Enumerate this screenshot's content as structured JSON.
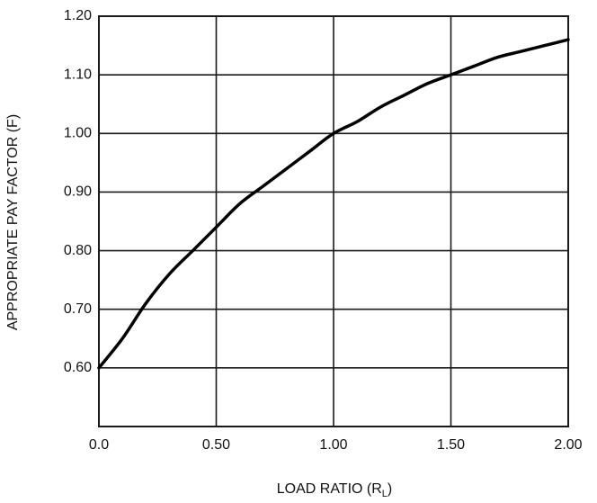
{
  "chart_data": {
    "type": "line",
    "xlabel": "LOAD RATIO (R",
    "xlabel_sub": "L",
    "xlabel_end": ")",
    "ylabel": "APPROPRIATE PAY FACTOR (F)",
    "xlim": [
      0,
      2.0
    ],
    "ylim": [
      0.5,
      1.2
    ],
    "x_ticks": [
      0,
      0.5,
      1.0,
      1.5,
      2.0
    ],
    "x_tick_labels": [
      "0.0",
      "0.50",
      "1.00",
      "1.50",
      "2.00"
    ],
    "y_ticks": [
      0.6,
      0.7,
      0.8,
      0.9,
      1.0,
      1.1,
      1.2
    ],
    "y_tick_labels": [
      "0.60",
      "0.70",
      "0.80",
      "0.90",
      "1.00",
      "1.10",
      "1.20"
    ],
    "grid": true,
    "series": [
      {
        "x": [
          0.0,
          0.1,
          0.2,
          0.3,
          0.4,
          0.5,
          0.6,
          0.7,
          0.8,
          0.9,
          1.0,
          1.1,
          1.2,
          1.3,
          1.4,
          1.5,
          1.6,
          1.7,
          1.8,
          1.9,
          2.0
        ],
        "y": [
          0.6,
          0.65,
          0.71,
          0.76,
          0.8,
          0.84,
          0.88,
          0.91,
          0.94,
          0.97,
          1.0,
          1.02,
          1.045,
          1.065,
          1.085,
          1.1,
          1.115,
          1.13,
          1.14,
          1.15,
          1.16
        ]
      }
    ],
    "colors": {
      "line": "#000000",
      "grid": "#1a1a1a"
    }
  }
}
